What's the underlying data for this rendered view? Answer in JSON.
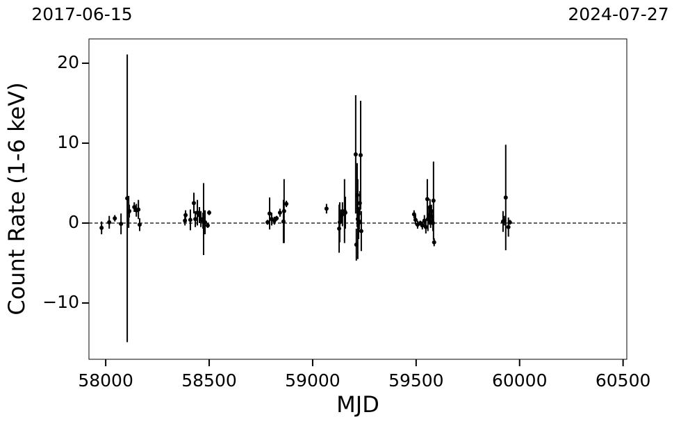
{
  "chart_data": {
    "type": "errorbar",
    "xlabel": "MJD",
    "ylabel": "Count Rate (1-6 keV)",
    "xlim": [
      57919,
      60518
    ],
    "ylim": [
      -17.04,
      23.04
    ],
    "xticks": [
      58000,
      58500,
      59000,
      59500,
      60000,
      60500
    ],
    "yticks": [
      {
        "value": -10,
        "label": "−10"
      },
      0,
      10,
      20
    ],
    "x2ticks": [
      {
        "value": 57919,
        "label": "2017-06-15"
      },
      {
        "value": 60518,
        "label": "2024-07-27"
      }
    ],
    "hline": 0,
    "color": "#000000",
    "x": [
      57980,
      58017,
      58044,
      58074,
      58104,
      58111,
      58114,
      58138,
      58148,
      58158,
      58164,
      58383,
      58386,
      58409,
      58426,
      58433,
      58443,
      58453,
      58460,
      58470,
      58473,
      58480,
      58493,
      58500,
      58782,
      58792,
      58802,
      58815,
      58826,
      58842,
      58859,
      58862,
      58873,
      59067,
      59128,
      59131,
      59138,
      59144,
      59154,
      59158,
      59208,
      59211,
      59215,
      59218,
      59222,
      59225,
      59228,
      59232,
      59235,
      59490,
      59497,
      59507,
      59520,
      59530,
      59540,
      59547,
      59554,
      59557,
      59564,
      59567,
      59570,
      59574,
      59577,
      59581,
      59584,
      59587,
      59920,
      59926,
      59933,
      59946,
      59953
    ],
    "values": [
      -0.6,
      0.1,
      0.6,
      -0.1,
      3.1,
      1.4,
      1.5,
      2.0,
      1.6,
      1.7,
      -0.2,
      0.3,
      1.0,
      0.4,
      2.5,
      0.5,
      1.3,
      1.0,
      0.5,
      0.3,
      0.5,
      0.1,
      -0.3,
      1.3,
      0.1,
      1.2,
      0.5,
      0.3,
      0.6,
      1.3,
      0.2,
      1.5,
      2.4,
      1.8,
      -0.7,
      0.1,
      0.9,
      1.1,
      1.5,
      1.3,
      8.6,
      -2.7,
      3.5,
      0.5,
      0.0,
      0.2,
      2.5,
      8.5,
      -1.0,
      1.1,
      0.4,
      -0.2,
      0.0,
      -0.3,
      0.3,
      -0.5,
      3.0,
      0.5,
      1.0,
      2.0,
      0.2,
      1.5,
      0.8,
      0.0,
      2.8,
      -2.4,
      0.2,
      0.3,
      3.2,
      -0.5,
      0.1
    ],
    "errors": [
      0.8,
      0.8,
      0.4,
      1.3,
      18,
      2,
      0.8,
      0.6,
      0.8,
      1.2,
      0.8,
      0.6,
      0.6,
      1.3,
      1.3,
      1.0,
      1.6,
      1.0,
      1.0,
      1.0,
      4.5,
      1.5,
      0.3,
      0.3,
      0.3,
      2,
      0.8,
      0.5,
      0.3,
      0.5,
      2.7,
      4,
      0.4,
      0.6,
      3,
      2.5,
      0.8,
      1.5,
      4,
      2,
      7.4,
      2,
      4,
      5,
      2,
      1.0,
      1.5,
      6.8,
      2.5,
      0.5,
      0.6,
      0.5,
      0.3,
      0.5,
      0.7,
      0.8,
      2.5,
      1.5,
      1.2,
      1.0,
      0.8,
      0.8,
      0.6,
      1.0,
      4.9,
      0.5,
      1.3,
      0.6,
      6.6,
      1.2,
      0.3
    ]
  }
}
